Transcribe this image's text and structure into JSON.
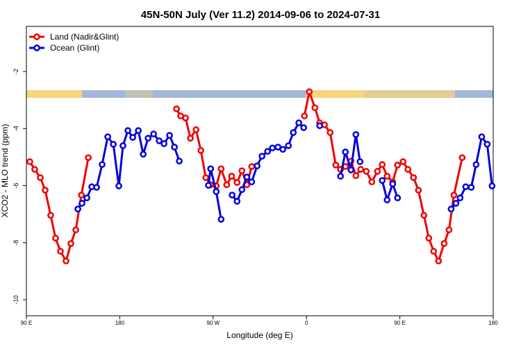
{
  "chart_data": {
    "type": "line",
    "title": "45N-50N July (Ver 11.2)   2014-09-06 to 2024-07-31",
    "x_label": "Longitude (deg E)",
    "y_label": "XCO2 - MLO trend (ppm)",
    "xlim": [
      90,
      540
    ],
    "ylim": [
      -10.56,
      -0.42
    ],
    "xticks": [
      {
        "value": 90,
        "label": "90 E"
      },
      {
        "value": 180,
        "label": "180"
      },
      {
        "value": 270,
        "label": "90 W"
      },
      {
        "value": 360,
        "label": "0"
      },
      {
        "value": 450,
        "label": "90 E"
      },
      {
        "value": 540,
        "label": "180"
      }
    ],
    "yticks": [
      -10,
      -8,
      -6,
      -4,
      -2
    ],
    "legend": "top-left",
    "series": [
      {
        "name": "Land (Nadir&Glint)",
        "color": "#ee0000",
        "x": [
          93.3,
          98.0,
          103.4,
          108.1,
          113.4,
          118.1,
          122.8,
          128.2,
          132.9,
          137.6,
          143.0,
          149.7,
          null,
          234.7,
          238.7,
          243.4,
          248.1,
          253.5,
          258.2,
          262.9,
          267.6,
          273.0,
          277.7,
          283.1,
          287.8,
          293.1,
          297.8,
          302.5,
          307.2,
          null,
          358.0,
          362.7,
          368.1,
          372.7,
          377.4,
          382.8,
          388.2,
          392.8,
          397.5,
          402.9,
          407.6,
          412.3,
          417.6,
          423.0,
          428.4,
          433.0,
          437.7,
          443.1,
          447.8,
          453.1,
          457.8,
          463.2,
          467.9,
          473.2,
          477.9,
          482.6,
          487.3,
          492.7,
          497.4,
          502.1,
          510.1
        ],
        "values": [
          -5.16,
          -5.43,
          -5.72,
          -6.16,
          -7.04,
          -7.84,
          -8.3,
          -8.64,
          -8.03,
          -7.55,
          -6.33,
          -5.02,
          null,
          -3.31,
          -3.56,
          -3.63,
          -4.34,
          -4.04,
          -4.77,
          -5.72,
          -5.97,
          -6.01,
          -5.41,
          -5.97,
          -5.67,
          -5.89,
          -5.48,
          -5.97,
          -5.33,
          null,
          -3.56,
          -2.71,
          -3.27,
          -3.8,
          -3.87,
          -4.14,
          -5.28,
          -5.43,
          -5.33,
          -5.14,
          -5.65,
          -5.43,
          -5.5,
          -5.87,
          -5.5,
          -5.26,
          -5.67,
          -5.87,
          -5.28,
          -5.16,
          -5.43,
          -5.72,
          -6.16,
          -7.04,
          -7.84,
          -8.3,
          -8.64,
          -8.03,
          -7.55,
          -6.33,
          -5.02
        ]
      },
      {
        "name": "Ocean (Glint)",
        "color": "#0000dd",
        "x": [
          139.6,
          143.6,
          148.3,
          153.0,
          157.7,
          163.0,
          168.4,
          173.8,
          179.1,
          183.1,
          187.8,
          192.5,
          197.9,
          202.6,
          207.3,
          212.6,
          218.0,
          222.7,
          228.0,
          232.7,
          237.4,
          null,
          265.5,
          267.6,
          273.0,
          277.7,
          null,
          288.3,
          293.1,
          297.8,
          302.5,
          307.2,
          312.4,
          317.1,
          322.5,
          327.2,
          332.5,
          337.2,
          342.6,
          347.3,
          352.6,
          357.3,
          null,
          372.7,
          null,
          392.8,
          397.5,
          402.9,
          407.6,
          411.6,
          null,
          433.0,
          437.7,
          443.1,
          447.8,
          null,
          499.4,
          504.1,
          508.1,
          513.5,
          518.8,
          523.5,
          528.9,
          534.2,
          538.9
        ],
        "values": [
          -6.82,
          -6.62,
          -6.43,
          -6.04,
          -6.06,
          -5.26,
          -4.29,
          -4.55,
          -6.01,
          -4.6,
          -4.07,
          -4.31,
          -4.07,
          -4.9,
          -4.34,
          -4.19,
          -4.43,
          -4.53,
          -4.24,
          -4.65,
          -5.14,
          null,
          -5.99,
          -5.41,
          -6.21,
          -7.18,
          null,
          -6.33,
          -6.55,
          -6.14,
          -5.7,
          -5.87,
          -5.31,
          -4.97,
          -4.8,
          -4.68,
          -4.65,
          -4.73,
          -4.6,
          -4.14,
          -3.8,
          -3.97,
          null,
          -3.9,
          null,
          -5.67,
          -4.82,
          -5.45,
          -4.21,
          -5.16,
          null,
          -5.82,
          -6.5,
          -5.94,
          -6.43,
          null,
          -6.82,
          -6.62,
          -6.43,
          -6.04,
          -6.06,
          -5.26,
          -4.29,
          -4.55,
          -6.01
        ]
      }
    ]
  }
}
